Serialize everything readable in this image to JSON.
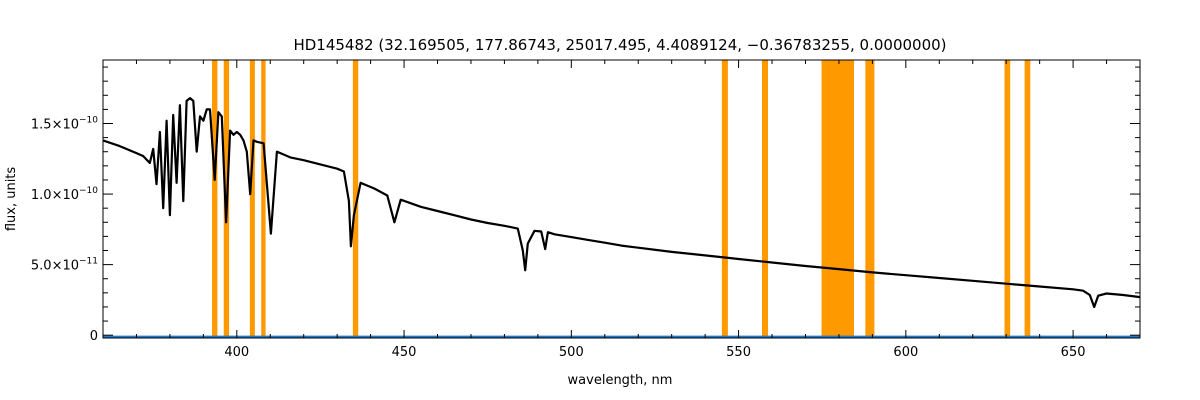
{
  "chart_data": {
    "type": "line",
    "title": "HD145482   (32.169505, 177.86743, 25017.495, 4.4089124, −0.36783255, 0.0000000)",
    "xlabel": "wavelength, nm",
    "ylabel": "flux, units",
    "xlim": [
      360,
      670
    ],
    "ylim": [
      -2e-12,
      1.95e-10
    ],
    "x_ticks": [
      400,
      450,
      500,
      550,
      600,
      650
    ],
    "x_tick_labels": [
      "400",
      "450",
      "500",
      "550",
      "600",
      "650"
    ],
    "y_ticks": [
      0,
      5e-11,
      1e-10,
      1.5e-10
    ],
    "y_tick_labels": [
      {
        "mantissa": "0",
        "exponent": ""
      },
      {
        "mantissa": "5.0×10",
        "exponent": "−11"
      },
      {
        "mantissa": "1.0×10",
        "exponent": "−10"
      },
      {
        "mantissa": "1.5×10",
        "exponent": "−10"
      }
    ],
    "grid": false,
    "series": [
      {
        "role": "spectrum",
        "color": "#000000",
        "x": [
          360,
          365,
          370,
          372,
          374,
          375,
          376,
          377,
          378,
          379,
          380,
          381,
          382,
          383,
          384,
          385,
          386,
          387,
          388,
          389,
          390,
          391,
          392,
          393.4,
          394.5,
          395.5,
          396.8,
          398,
          399,
          400,
          401,
          402,
          403,
          404,
          405,
          406,
          408,
          410.2,
          412,
          414,
          416,
          420,
          425,
          430,
          432,
          433.5,
          434.1,
          435,
          437,
          439,
          441,
          445,
          447.1,
          449,
          455,
          460,
          465,
          470,
          475,
          480,
          484,
          485.5,
          486.2,
          487,
          489,
          491,
          492.2,
          493,
          495,
          500,
          505,
          510,
          515,
          520,
          530,
          540,
          550,
          560,
          570,
          580,
          590,
          600,
          610,
          620,
          630,
          640,
          650,
          653,
          655,
          656.3,
          657.5,
          660,
          665,
          670
        ],
        "y": [
          1.38e-10,
          1.34e-10,
          1.29e-10,
          1.27e-10,
          1.22e-10,
          1.32e-10,
          1.07e-10,
          1.44e-10,
          9e-11,
          1.52e-10,
          8.5e-11,
          1.56e-10,
          1.08e-10,
          1.63e-10,
          9.5e-11,
          1.66e-10,
          1.68e-10,
          1.66e-10,
          1.3e-10,
          1.55e-10,
          1.52e-10,
          1.6e-10,
          1.6e-10,
          1.1e-10,
          1.58e-10,
          1.55e-10,
          8e-11,
          1.45e-10,
          1.42e-10,
          1.44e-10,
          1.42e-10,
          1.38e-10,
          1.3e-10,
          1e-10,
          1.38e-10,
          1.37e-10,
          1.36e-10,
          7.2e-11,
          1.3e-10,
          1.28e-10,
          1.26e-10,
          1.24e-10,
          1.21e-10,
          1.18e-10,
          1.16e-10,
          9.5e-11,
          6.3e-11,
          8.5e-11,
          1.08e-10,
          1.06e-10,
          1.04e-10,
          9.9e-11,
          8e-11,
          9.6e-11,
          9.1e-11,
          8.8e-11,
          8.5e-11,
          8.2e-11,
          7.95e-11,
          7.75e-11,
          7.55e-11,
          6e-11,
          4.6e-11,
          6.5e-11,
          7.4e-11,
          7.35e-11,
          6.1e-11,
          7.3e-11,
          7.15e-11,
          6.95e-11,
          6.75e-11,
          6.55e-11,
          6.35e-11,
          6.2e-11,
          5.9e-11,
          5.65e-11,
          5.4e-11,
          5.15e-11,
          4.9e-11,
          4.68e-11,
          4.45e-11,
          4.25e-11,
          4.05e-11,
          3.85e-11,
          3.65e-11,
          3.45e-11,
          3.25e-11,
          3.15e-11,
          2.85e-11,
          2e-11,
          2.8e-11,
          2.95e-11,
          2.85e-11,
          2.7e-11
        ]
      },
      {
        "role": "baseline",
        "color": "#1f78c8",
        "x": [
          360,
          670
        ],
        "y": [
          -1e-12,
          -1e-12
        ]
      }
    ],
    "highlight_bands": {
      "color": "#ff9900",
      "ranges": [
        [
          392.6,
          394.2
        ],
        [
          396.1,
          397.7
        ],
        [
          403.9,
          405.4
        ],
        [
          407.3,
          408.6
        ],
        [
          434.7,
          436.3
        ],
        [
          545.0,
          546.8
        ],
        [
          557.0,
          558.8
        ],
        [
          574.8,
          584.5
        ],
        [
          587.9,
          590.6
        ],
        [
          629.5,
          631.2
        ],
        [
          635.5,
          637.2
        ]
      ]
    }
  }
}
